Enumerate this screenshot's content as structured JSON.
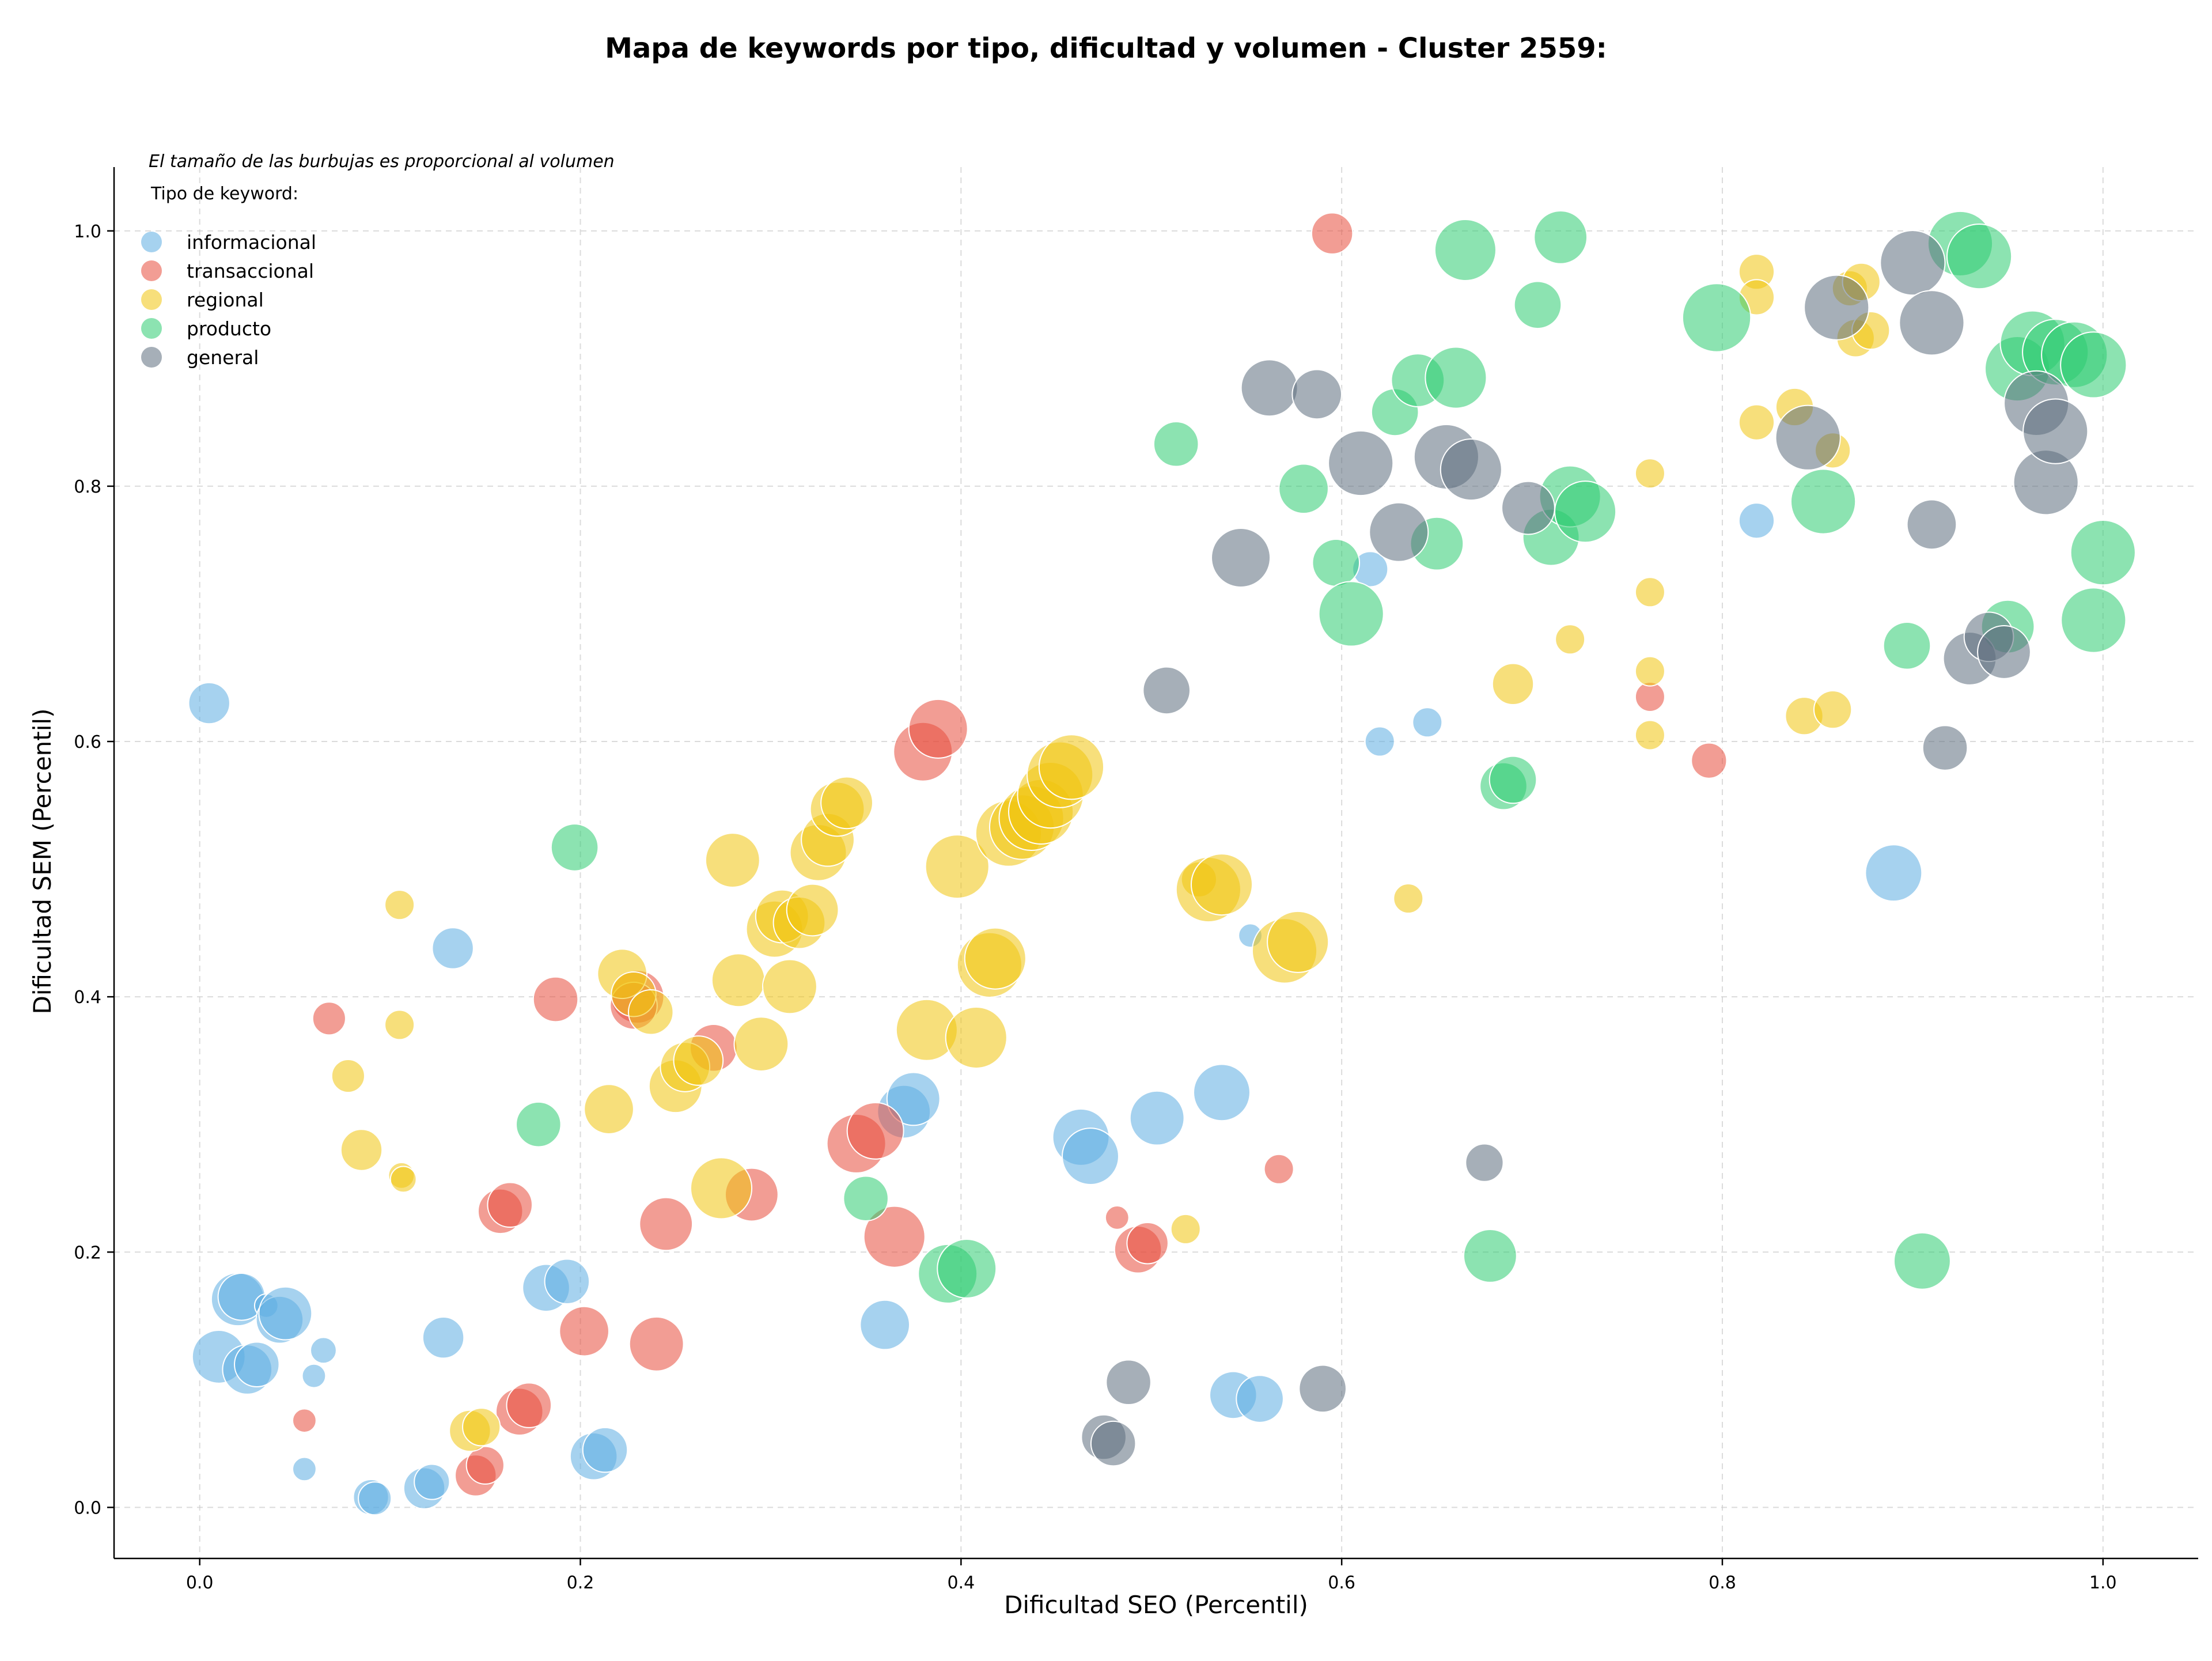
{
  "chart_data": {
    "type": "scatter",
    "title": "Mapa de keywords por tipo, dificultad y volumen - Cluster 2559:",
    "xlabel": "Dificultad SEO (Percentil)",
    "ylabel": "Dificultad SEM (Percentil)",
    "xlim": [
      -0.045,
      1.05
    ],
    "ylim": [
      -0.04,
      1.05
    ],
    "xticks": [
      "0.0",
      "0.2",
      "0.4",
      "0.6",
      "0.8",
      "1.0"
    ],
    "yticks": [
      "0.0",
      "0.2",
      "0.4",
      "0.6",
      "0.8",
      "1.0"
    ],
    "grid": true,
    "legend_note": "El tamaño de las burbujas es proporcional al volumen",
    "legend_title": "Tipo de keyword:",
    "legend_position": "top-left",
    "size_encoding": "volume",
    "series": [
      {
        "name": "informacional",
        "color": "#5dade2",
        "points": [
          [
            0.005,
            0.63,
            35
          ],
          [
            0.02,
            0.163,
            45
          ],
          [
            0.022,
            0.165,
            40
          ],
          [
            0.01,
            0.118,
            45
          ],
          [
            0.025,
            0.108,
            42
          ],
          [
            0.03,
            0.112,
            38
          ],
          [
            0.035,
            0.158,
            20
          ],
          [
            0.042,
            0.147,
            40
          ],
          [
            0.045,
            0.152,
            45
          ],
          [
            0.055,
            0.03,
            20
          ],
          [
            0.06,
            0.103,
            20
          ],
          [
            0.065,
            0.123,
            22
          ],
          [
            0.09,
            0.008,
            30
          ],
          [
            0.092,
            0.007,
            28
          ],
          [
            0.118,
            0.015,
            35
          ],
          [
            0.122,
            0.02,
            30
          ],
          [
            0.128,
            0.133,
            35
          ],
          [
            0.133,
            0.438,
            35
          ],
          [
            0.182,
            0.172,
            40
          ],
          [
            0.193,
            0.177,
            38
          ],
          [
            0.207,
            0.04,
            40
          ],
          [
            0.213,
            0.045,
            38
          ],
          [
            0.36,
            0.143,
            42
          ],
          [
            0.37,
            0.31,
            45
          ],
          [
            0.375,
            0.32,
            45
          ],
          [
            0.463,
            0.29,
            48
          ],
          [
            0.468,
            0.275,
            48
          ],
          [
            0.503,
            0.305,
            46
          ],
          [
            0.537,
            0.325,
            48
          ],
          [
            0.543,
            0.088,
            40
          ],
          [
            0.557,
            0.085,
            40
          ],
          [
            0.552,
            0.448,
            20
          ],
          [
            0.62,
            0.6,
            25
          ],
          [
            0.645,
            0.615,
            25
          ],
          [
            0.615,
            0.735,
            30
          ],
          [
            0.818,
            0.773,
            30
          ],
          [
            0.89,
            0.497,
            48
          ]
        ]
      },
      {
        "name": "transaccional",
        "color": "#e74c3c",
        "points": [
          [
            0.055,
            0.068,
            20
          ],
          [
            0.068,
            0.383,
            28
          ],
          [
            0.145,
            0.025,
            35
          ],
          [
            0.15,
            0.033,
            32
          ],
          [
            0.158,
            0.232,
            38
          ],
          [
            0.163,
            0.237,
            38
          ],
          [
            0.168,
            0.075,
            40
          ],
          [
            0.173,
            0.08,
            38
          ],
          [
            0.187,
            0.398,
            38
          ],
          [
            0.202,
            0.138,
            42
          ],
          [
            0.23,
            0.4,
            45
          ],
          [
            0.228,
            0.393,
            40
          ],
          [
            0.24,
            0.128,
            46
          ],
          [
            0.245,
            0.222,
            45
          ],
          [
            0.27,
            0.36,
            40
          ],
          [
            0.29,
            0.245,
            45
          ],
          [
            0.345,
            0.285,
            50
          ],
          [
            0.355,
            0.295,
            48
          ],
          [
            0.365,
            0.212,
            52
          ],
          [
            0.38,
            0.592,
            50
          ],
          [
            0.388,
            0.61,
            50
          ],
          [
            0.482,
            0.227,
            20
          ],
          [
            0.493,
            0.202,
            40
          ],
          [
            0.498,
            0.207,
            35
          ],
          [
            0.567,
            0.265,
            25
          ],
          [
            0.595,
            0.998,
            35
          ],
          [
            0.762,
            0.635,
            25
          ],
          [
            0.793,
            0.585,
            30
          ]
        ]
      },
      {
        "name": "regional",
        "color": "#f1c40f",
        "points": [
          [
            0.078,
            0.338,
            28
          ],
          [
            0.085,
            0.28,
            35
          ],
          [
            0.105,
            0.472,
            25
          ],
          [
            0.105,
            0.378,
            25
          ],
          [
            0.106,
            0.26,
            22
          ],
          [
            0.107,
            0.257,
            22
          ],
          [
            0.142,
            0.06,
            35
          ],
          [
            0.148,
            0.063,
            32
          ],
          [
            0.215,
            0.312,
            42
          ],
          [
            0.222,
            0.418,
            42
          ],
          [
            0.228,
            0.402,
            38
          ],
          [
            0.237,
            0.388,
            38
          ],
          [
            0.25,
            0.33,
            45
          ],
          [
            0.255,
            0.345,
            42
          ],
          [
            0.262,
            0.35,
            42
          ],
          [
            0.274,
            0.25,
            52
          ],
          [
            0.28,
            0.507,
            46
          ],
          [
            0.283,
            0.413,
            45
          ],
          [
            0.295,
            0.363,
            46
          ],
          [
            0.302,
            0.453,
            48
          ],
          [
            0.306,
            0.463,
            45
          ],
          [
            0.31,
            0.408,
            46
          ],
          [
            0.315,
            0.458,
            44
          ],
          [
            0.322,
            0.468,
            44
          ],
          [
            0.325,
            0.513,
            48
          ],
          [
            0.33,
            0.523,
            45
          ],
          [
            0.335,
            0.547,
            46
          ],
          [
            0.34,
            0.552,
            44
          ],
          [
            0.382,
            0.374,
            52
          ],
          [
            0.398,
            0.502,
            54
          ],
          [
            0.408,
            0.368,
            52
          ],
          [
            0.415,
            0.425,
            55
          ],
          [
            0.418,
            0.43,
            52
          ],
          [
            0.425,
            0.528,
            56
          ],
          [
            0.432,
            0.533,
            55
          ],
          [
            0.437,
            0.54,
            55
          ],
          [
            0.442,
            0.545,
            55
          ],
          [
            0.447,
            0.558,
            56
          ],
          [
            0.452,
            0.574,
            56
          ],
          [
            0.458,
            0.58,
            55
          ],
          [
            0.518,
            0.218,
            25
          ],
          [
            0.525,
            0.492,
            30
          ],
          [
            0.53,
            0.484,
            55
          ],
          [
            0.537,
            0.488,
            52
          ],
          [
            0.57,
            0.436,
            55
          ],
          [
            0.577,
            0.443,
            52
          ],
          [
            0.635,
            0.477,
            25
          ],
          [
            0.69,
            0.645,
            35
          ],
          [
            0.72,
            0.68,
            25
          ],
          [
            0.762,
            0.81,
            25
          ],
          [
            0.762,
            0.717,
            25
          ],
          [
            0.762,
            0.655,
            25
          ],
          [
            0.762,
            0.605,
            25
          ],
          [
            0.818,
            0.968,
            30
          ],
          [
            0.818,
            0.948,
            30
          ],
          [
            0.818,
            0.85,
            30
          ],
          [
            0.838,
            0.862,
            32
          ],
          [
            0.843,
            0.62,
            32
          ],
          [
            0.858,
            0.625,
            32
          ],
          [
            0.858,
            0.828,
            30
          ],
          [
            0.867,
            0.955,
            30
          ],
          [
            0.873,
            0.96,
            32
          ],
          [
            0.87,
            0.916,
            32
          ],
          [
            0.878,
            0.922,
            32
          ]
        ]
      },
      {
        "name": "producto",
        "color": "#2ecc71",
        "points": [
          [
            0.178,
            0.3,
            38
          ],
          [
            0.197,
            0.517,
            40
          ],
          [
            0.35,
            0.242,
            38
          ],
          [
            0.393,
            0.183,
            50
          ],
          [
            0.403,
            0.187,
            50
          ],
          [
            0.513,
            0.833,
            38
          ],
          [
            0.58,
            0.798,
            42
          ],
          [
            0.597,
            0.74,
            40
          ],
          [
            0.605,
            0.7,
            55
          ],
          [
            0.628,
            0.858,
            40
          ],
          [
            0.64,
            0.883,
            45
          ],
          [
            0.65,
            0.755,
            45
          ],
          [
            0.66,
            0.885,
            52
          ],
          [
            0.665,
            0.985,
            52
          ],
          [
            0.678,
            0.197,
            45
          ],
          [
            0.685,
            0.565,
            40
          ],
          [
            0.69,
            0.57,
            40
          ],
          [
            0.703,
            0.942,
            40
          ],
          [
            0.71,
            0.76,
            48
          ],
          [
            0.715,
            0.995,
            45
          ],
          [
            0.72,
            0.792,
            52
          ],
          [
            0.728,
            0.78,
            52
          ],
          [
            0.797,
            0.932,
            58
          ],
          [
            0.853,
            0.788,
            55
          ],
          [
            0.897,
            0.675,
            40
          ],
          [
            0.905,
            0.193,
            48
          ],
          [
            0.925,
            0.99,
            55
          ],
          [
            0.935,
            0.98,
            55
          ],
          [
            0.95,
            0.69,
            45
          ],
          [
            0.955,
            0.892,
            55
          ],
          [
            0.963,
            0.912,
            55
          ],
          [
            0.975,
            0.905,
            56
          ],
          [
            0.985,
            0.903,
            56
          ],
          [
            0.995,
            0.895,
            56
          ],
          [
            0.995,
            0.695,
            55
          ],
          [
            1.0,
            0.748,
            55
          ]
        ]
      },
      {
        "name": "general",
        "color": "#5d6d7e",
        "points": [
          [
            0.475,
            0.055,
            38
          ],
          [
            0.48,
            0.05,
            38
          ],
          [
            0.488,
            0.098,
            38
          ],
          [
            0.508,
            0.64,
            40
          ],
          [
            0.547,
            0.744,
            50
          ],
          [
            0.562,
            0.877,
            48
          ],
          [
            0.587,
            0.872,
            42
          ],
          [
            0.59,
            0.093,
            40
          ],
          [
            0.61,
            0.818,
            55
          ],
          [
            0.63,
            0.764,
            50
          ],
          [
            0.655,
            0.823,
            55
          ],
          [
            0.668,
            0.813,
            52
          ],
          [
            0.675,
            0.27,
            32
          ],
          [
            0.698,
            0.783,
            45
          ],
          [
            0.845,
            0.838,
            55
          ],
          [
            0.86,
            0.94,
            55
          ],
          [
            0.9,
            0.975,
            55
          ],
          [
            0.91,
            0.928,
            55
          ],
          [
            0.91,
            0.77,
            42
          ],
          [
            0.917,
            0.595,
            38
          ],
          [
            0.93,
            0.665,
            45
          ],
          [
            0.94,
            0.682,
            42
          ],
          [
            0.948,
            0.67,
            45
          ],
          [
            0.965,
            0.865,
            55
          ],
          [
            0.97,
            0.803,
            55
          ],
          [
            0.975,
            0.843,
            55
          ]
        ]
      }
    ]
  }
}
